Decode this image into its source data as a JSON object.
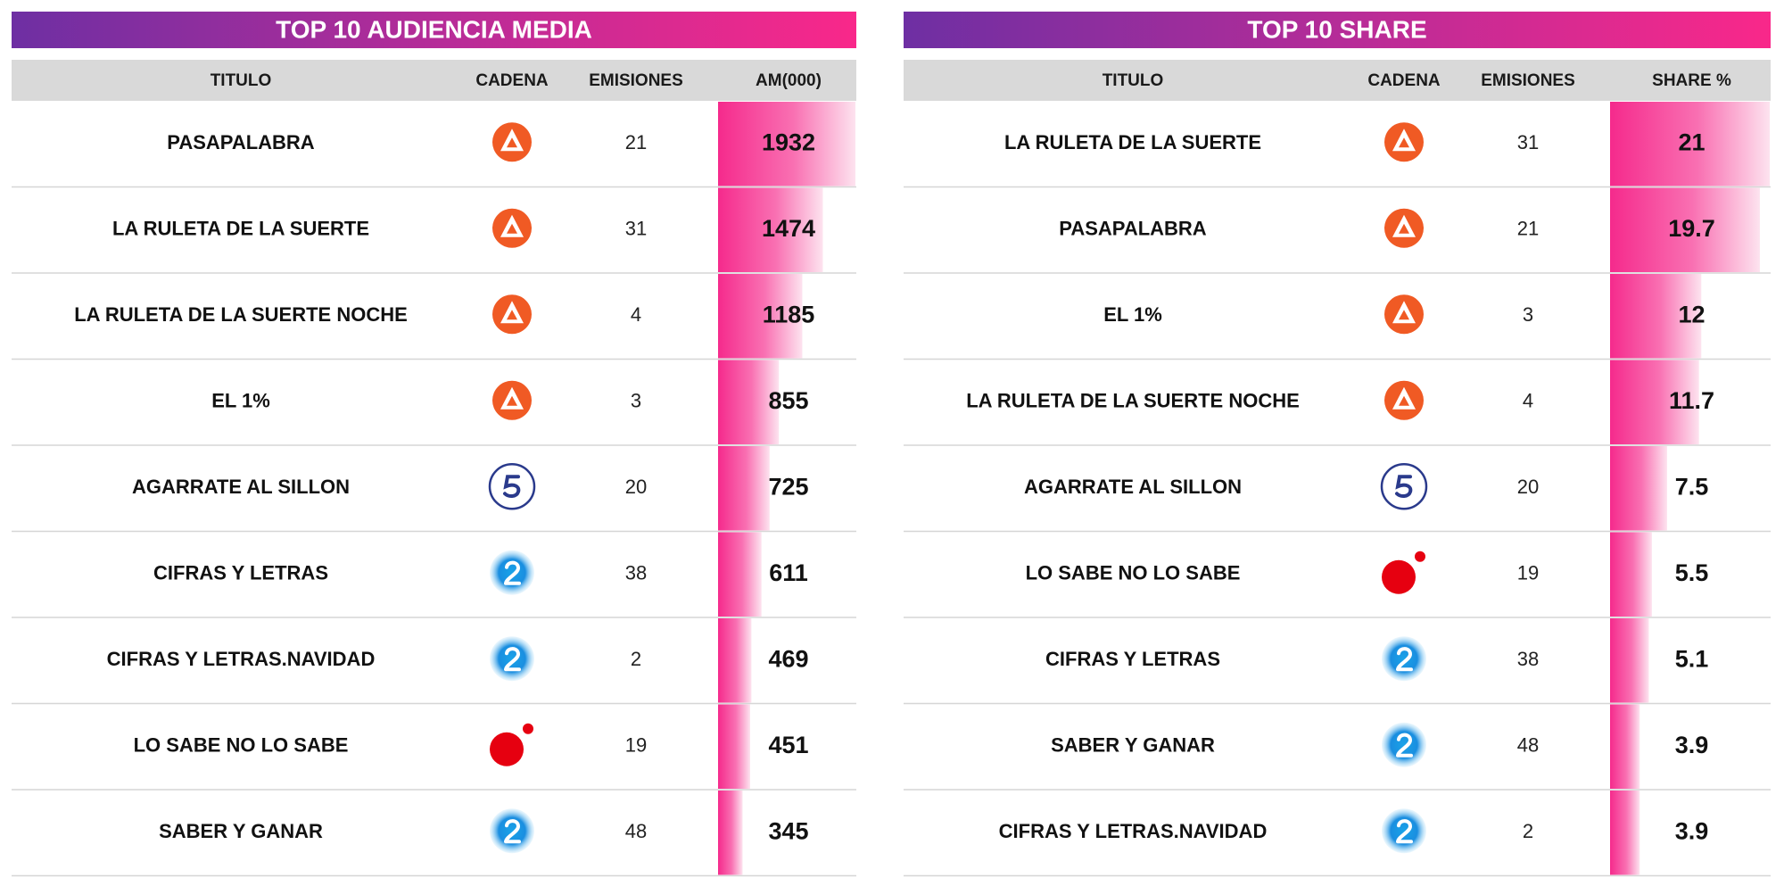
{
  "tables": [
    {
      "title": "TOP 10 AUDIENCIA MEDIA",
      "headers": [
        "TITULO",
        "CADENA",
        "EMISIONES",
        "AM(000)"
      ],
      "rows": [
        [
          "PASAPALABRA",
          21,
          1932
        ],
        [
          "LA RULETA DE LA SUERTE",
          31,
          1474
        ],
        [
          "LA RULETA DE LA SUERTE NOCHE",
          4,
          1185
        ],
        [
          "EL 1%",
          3,
          855
        ],
        [
          "AGARRATE AL SILLON",
          20,
          725
        ],
        [
          "CIFRAS Y LETRAS",
          38,
          611
        ],
        [
          "CIFRAS Y LETRAS.NAVIDAD",
          2,
          469
        ],
        [
          "LO SABE NO LO SABE",
          19,
          451
        ],
        [
          "SABER Y GANAR",
          48,
          345
        ]
      ]
    },
    {
      "title": "TOP 10 SHARE",
      "headers": [
        "TITULO",
        "CADENA",
        "EMISIONES",
        "SHARE %"
      ],
      "rows": [
        [
          "LA RULETA DE LA SUERTE",
          31,
          21
        ],
        [
          "PASAPALABRA",
          21,
          19.7
        ],
        [
          "EL 1%",
          3,
          12
        ],
        [
          "LA RULETA DE LA SUERTE NOCHE",
          4,
          11.7
        ],
        [
          "AGARRATE AL SILLON",
          20,
          7.5
        ],
        [
          "LO SABE NO LO SABE",
          19,
          5.5
        ],
        [
          "CIFRAS Y LETRAS",
          38,
          5.1
        ],
        [
          "SABER Y GANAR",
          48,
          3.9
        ],
        [
          "CIFRAS Y LETRAS.NAVIDAD",
          2,
          3.9
        ]
      ]
    }
  ]
}
